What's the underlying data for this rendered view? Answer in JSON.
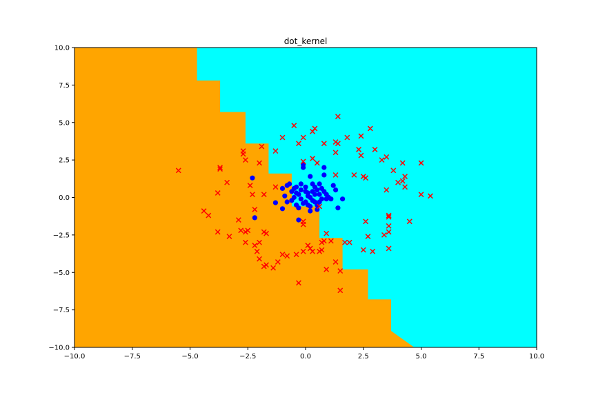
{
  "chart_data": {
    "type": "scatter",
    "title": "dot_kernel",
    "xlabel": "",
    "ylabel": "",
    "xlim": [
      -10,
      10
    ],
    "ylim": [
      -10,
      10
    ],
    "xticks": [
      -10.0,
      -7.5,
      -5.0,
      -2.5,
      0.0,
      2.5,
      5.0,
      7.5,
      10.0
    ],
    "yticks": [
      -10.0,
      -7.5,
      -5.0,
      -2.5,
      0.0,
      2.5,
      5.0,
      7.5,
      10.0
    ],
    "grid": false,
    "legend": "none",
    "regions": {
      "upper_right_color": "#00ffff",
      "lower_left_color": "#ffa500",
      "boundary": [
        [
          -5.7,
          10
        ],
        [
          -4.7,
          10
        ],
        [
          -4.7,
          7.8
        ],
        [
          -3.7,
          7.8
        ],
        [
          -3.7,
          5.7
        ],
        [
          -2.6,
          5.7
        ],
        [
          -2.6,
          3.6
        ],
        [
          -1.6,
          3.6
        ],
        [
          -1.6,
          1.6
        ],
        [
          -0.6,
          1.6
        ],
        [
          -0.6,
          -0.6
        ],
        [
          0.6,
          -0.6
        ],
        [
          0.6,
          -2.7
        ],
        [
          1.6,
          -2.7
        ],
        [
          1.6,
          -4.8
        ],
        [
          2.7,
          -4.8
        ],
        [
          2.7,
          -6.8
        ],
        [
          3.7,
          -6.8
        ],
        [
          3.7,
          -8.9
        ],
        [
          4.7,
          -10
        ]
      ]
    },
    "series": [
      {
        "marker": "circle",
        "color": "#0000ff",
        "points": [
          [
            0.2,
            0.0
          ],
          [
            0.4,
            0.2
          ],
          [
            -0.2,
            0.5
          ],
          [
            0.6,
            -0.3
          ],
          [
            0.1,
            -0.5
          ],
          [
            -0.4,
            0.3
          ],
          [
            0.8,
            0.4
          ],
          [
            0.3,
            0.9
          ],
          [
            -0.6,
            -0.2
          ],
          [
            0.5,
            -0.8
          ],
          [
            0.0,
            0.7
          ],
          [
            -0.3,
            -0.7
          ],
          [
            1.0,
            0.0
          ],
          [
            0.2,
            1.4
          ],
          [
            -0.1,
            2.2
          ],
          [
            -0.1,
            2.0
          ],
          [
            0.8,
            2.0
          ],
          [
            0.8,
            1.5
          ],
          [
            1.2,
            0.8
          ],
          [
            1.3,
            0.5
          ],
          [
            -0.8,
            0.8
          ],
          [
            -0.7,
            0.9
          ],
          [
            -1.0,
            0.6
          ],
          [
            -0.4,
            0.7
          ],
          [
            -2.3,
            1.3
          ],
          [
            -2.2,
            -1.35
          ],
          [
            -1.3,
            -0.35
          ],
          [
            -1.0,
            -0.75
          ],
          [
            -0.3,
            -1.5
          ],
          [
            0.4,
            -0.3
          ],
          [
            0.6,
            0.2
          ],
          [
            0.9,
            -0.1
          ],
          [
            1.6,
            -0.1
          ],
          [
            1.4,
            -0.7
          ],
          [
            1.1,
            -0.1
          ],
          [
            -0.2,
            -0.1
          ],
          [
            0.1,
            0.3
          ],
          [
            0.3,
            -0.2
          ],
          [
            0.5,
            0.5
          ],
          [
            -0.5,
            0.0
          ],
          [
            0.0,
            -0.3
          ],
          [
            0.7,
            -0.1
          ],
          [
            0.4,
            0.7
          ],
          [
            -0.3,
            0.2
          ],
          [
            0.2,
            -0.9
          ],
          [
            -0.6,
            0.4
          ],
          [
            0.6,
            0.9
          ],
          [
            -0.1,
            -0.4
          ],
          [
            0.3,
            0.4
          ],
          [
            0.9,
            0.2
          ],
          [
            -0.8,
            -0.3
          ],
          [
            -0.4,
            -0.5
          ],
          [
            0.1,
            0.1
          ],
          [
            0.5,
            -0.5
          ],
          [
            -0.2,
            0.9
          ],
          [
            0.7,
            0.6
          ],
          [
            -0.9,
            0.1
          ],
          [
            0.0,
            0.4
          ],
          [
            -0.5,
            0.6
          ],
          [
            0.2,
            -0.6
          ]
        ]
      },
      {
        "marker": "x",
        "color": "#ff0000",
        "points": [
          [
            -5.5,
            1.8
          ],
          [
            -3.7,
            2.0
          ],
          [
            -3.7,
            1.9
          ],
          [
            -3.4,
            1.0
          ],
          [
            -3.8,
            0.3
          ],
          [
            -4.4,
            -0.9
          ],
          [
            -4.2,
            -1.2
          ],
          [
            -3.8,
            -2.3
          ],
          [
            -3.3,
            -2.6
          ],
          [
            -2.9,
            -1.5
          ],
          [
            -2.6,
            -2.3
          ],
          [
            -2.5,
            -2.2
          ],
          [
            -2.6,
            -3.0
          ],
          [
            -2.8,
            -2.2
          ],
          [
            -2.2,
            -3.2
          ],
          [
            -2.1,
            -3.6
          ],
          [
            -2.0,
            -4.1
          ],
          [
            -2.0,
            -3.0
          ],
          [
            -2.2,
            -0.8
          ],
          [
            -1.8,
            -2.3
          ],
          [
            -1.7,
            -2.4
          ],
          [
            -1.7,
            -4.5
          ],
          [
            -1.8,
            -4.6
          ],
          [
            -1.4,
            -4.7
          ],
          [
            -1.2,
            -4.3
          ],
          [
            -1.0,
            -3.8
          ],
          [
            -0.8,
            -3.9
          ],
          [
            -0.4,
            -3.8
          ],
          [
            -0.1,
            -3.6
          ],
          [
            0.1,
            -3.2
          ],
          [
            0.2,
            -3.4
          ],
          [
            0.3,
            -3.6
          ],
          [
            0.7,
            -3.5
          ],
          [
            0.6,
            -3.6
          ],
          [
            0.7,
            -3.0
          ],
          [
            0.8,
            -2.9
          ],
          [
            1.1,
            -2.9
          ],
          [
            1.3,
            -4.3
          ],
          [
            0.9,
            -4.8
          ],
          [
            1.5,
            -4.9
          ],
          [
            1.5,
            -6.2
          ],
          [
            -0.3,
            -5.7
          ],
          [
            -0.1,
            -1.8
          ],
          [
            0.9,
            -2.4
          ],
          [
            1.7,
            -3.0
          ],
          [
            1.9,
            -3.0
          ],
          [
            2.5,
            -3.5
          ],
          [
            2.9,
            -3.6
          ],
          [
            2.7,
            -2.6
          ],
          [
            2.6,
            -1.6
          ],
          [
            3.4,
            -2.5
          ],
          [
            3.6,
            -2.3
          ],
          [
            3.6,
            -1.9
          ],
          [
            3.6,
            -1.3
          ],
          [
            3.6,
            -1.2
          ],
          [
            3.6,
            -3.4
          ],
          [
            4.5,
            -1.6
          ],
          [
            5.0,
            0.2
          ],
          [
            5.4,
            0.1
          ],
          [
            4.3,
            0.7
          ],
          [
            4.2,
            1.1
          ],
          [
            4.3,
            1.4
          ],
          [
            4.0,
            1.0
          ],
          [
            3.8,
            1.8
          ],
          [
            3.5,
            0.5
          ],
          [
            3.5,
            2.7
          ],
          [
            3.3,
            2.5
          ],
          [
            3.0,
            3.2
          ],
          [
            4.2,
            2.3
          ],
          [
            5.0,
            2.3
          ],
          [
            2.8,
            4.6
          ],
          [
            2.4,
            4.1
          ],
          [
            2.3,
            3.2
          ],
          [
            2.4,
            2.8
          ],
          [
            2.5,
            1.4
          ],
          [
            2.6,
            1.3
          ],
          [
            2.1,
            1.5
          ],
          [
            1.8,
            4.0
          ],
          [
            1.4,
            3.6
          ],
          [
            1.3,
            3.7
          ],
          [
            1.4,
            5.4
          ],
          [
            1.3,
            3.0
          ],
          [
            0.8,
            3.6
          ],
          [
            0.4,
            4.6
          ],
          [
            0.3,
            4.4
          ],
          [
            -0.1,
            4.0
          ],
          [
            -0.5,
            4.8
          ],
          [
            -0.3,
            3.6
          ],
          [
            -1.0,
            4.0
          ],
          [
            -1.3,
            3.1
          ],
          [
            -1.9,
            3.4
          ],
          [
            -2.0,
            2.3
          ],
          [
            -2.6,
            2.5
          ],
          [
            -2.7,
            3.1
          ],
          [
            -2.7,
            2.9
          ],
          [
            -2.4,
            0.8
          ],
          [
            -2.3,
            0.2
          ],
          [
            -1.8,
            0.2
          ],
          [
            -1.3,
            0.7
          ],
          [
            -0.1,
            2.4
          ],
          [
            0.3,
            2.6
          ],
          [
            0.5,
            2.3
          ],
          [
            1.3,
            1.5
          ],
          [
            0.6,
            -0.6
          ],
          [
            -0.1,
            -1.6
          ]
        ]
      }
    ]
  }
}
